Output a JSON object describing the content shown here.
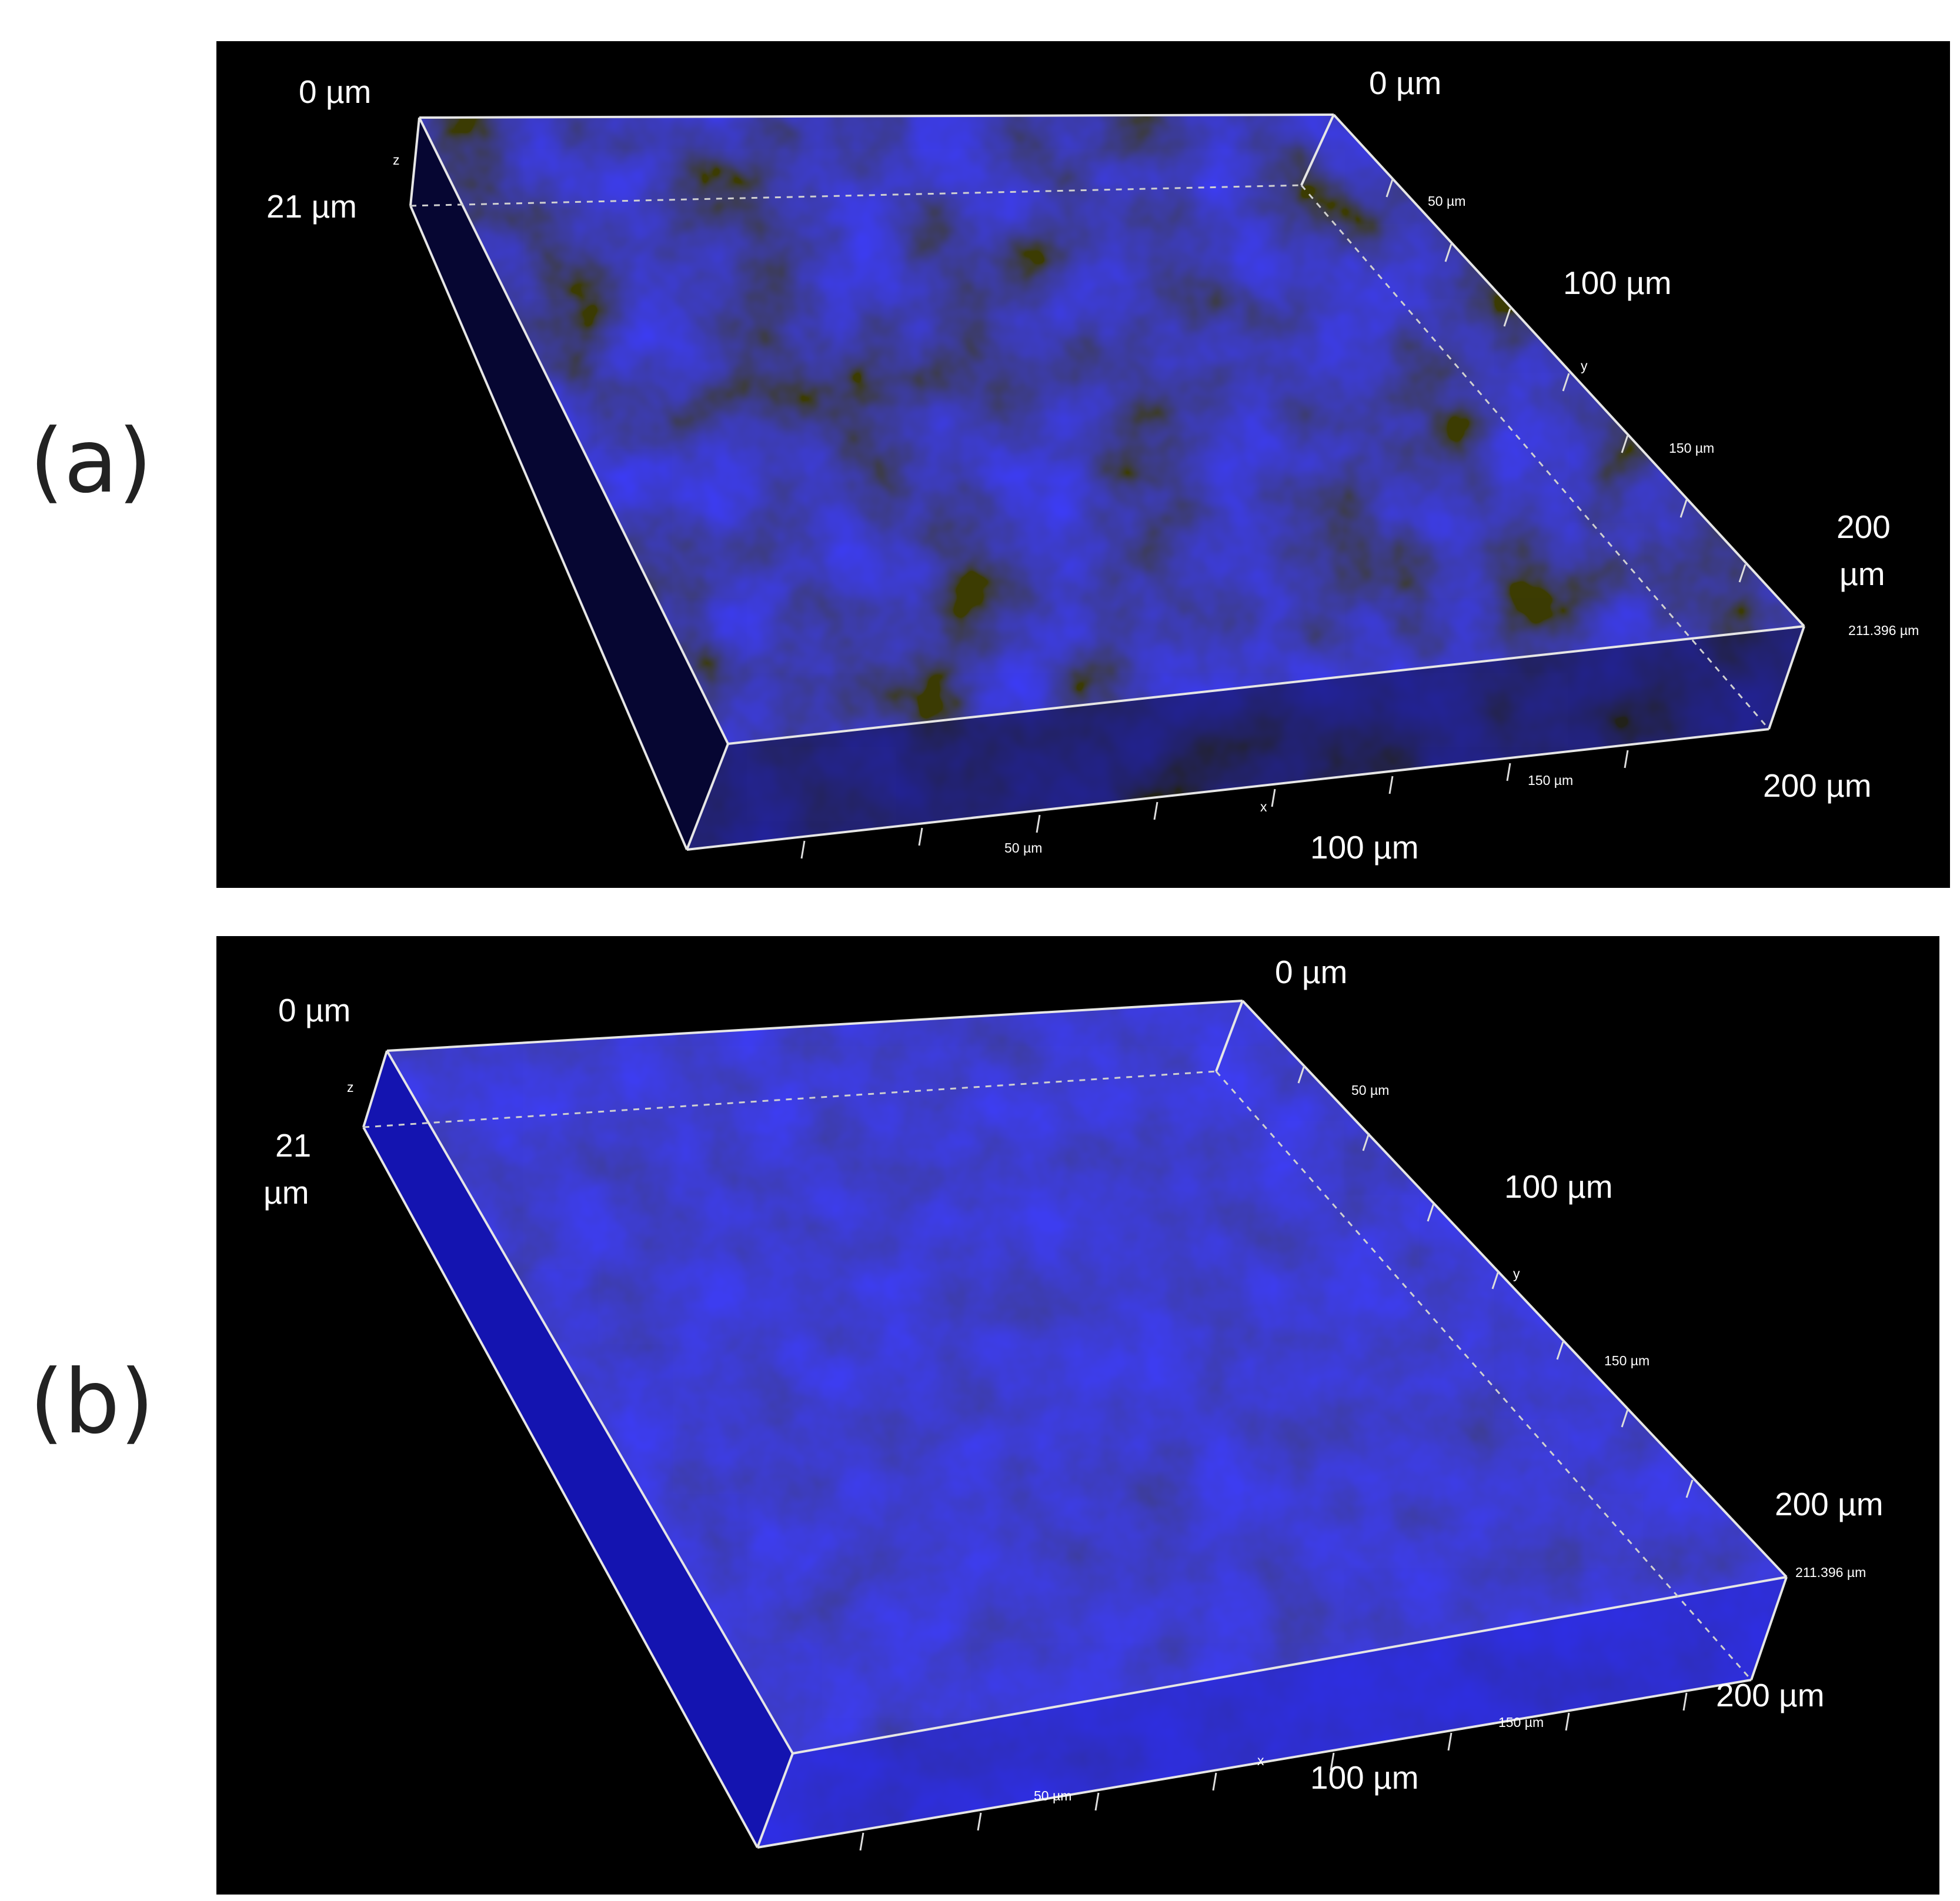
{
  "figure": {
    "colors": {
      "background": "#000000",
      "stain_dark": "#0a0a55",
      "stain_bright": "#2a2aff",
      "box_edge": "#e6e6e6"
    },
    "panels": [
      {
        "letter": "(a)",
        "labels": {
          "z_top": "0 µm",
          "z_bottom": "21 µm",
          "y_start": "0 µm",
          "y_mid": "100 µm",
          "y_end_1": "200",
          "y_end_2": "µm",
          "x_mid": "100 µm",
          "x_end": "200 µm",
          "tick_y50": "50 µm",
          "tick_y150": "150 µm",
          "tick_x50": "50 µm",
          "tick_x150": "150 µm",
          "corner": "211.396 µm",
          "axis_z": "z",
          "axis_y": "y",
          "axis_x": "x"
        }
      },
      {
        "letter": "(b)",
        "labels": {
          "z_top": "0 µm",
          "z_bottom_1": "21",
          "z_bottom_2": "µm",
          "y_start": "0 µm",
          "y_mid": "100 µm",
          "y_end": "200 µm",
          "x_mid": "100 µm",
          "x_end": "200 µm",
          "tick_y50": "50 µm",
          "tick_y150": "150 µm",
          "tick_x50": "50 µm",
          "tick_x150": "150 µm",
          "corner": "211.396 µm",
          "axis_z": "z",
          "axis_y": "y",
          "axis_x": "x"
        }
      }
    ]
  }
}
